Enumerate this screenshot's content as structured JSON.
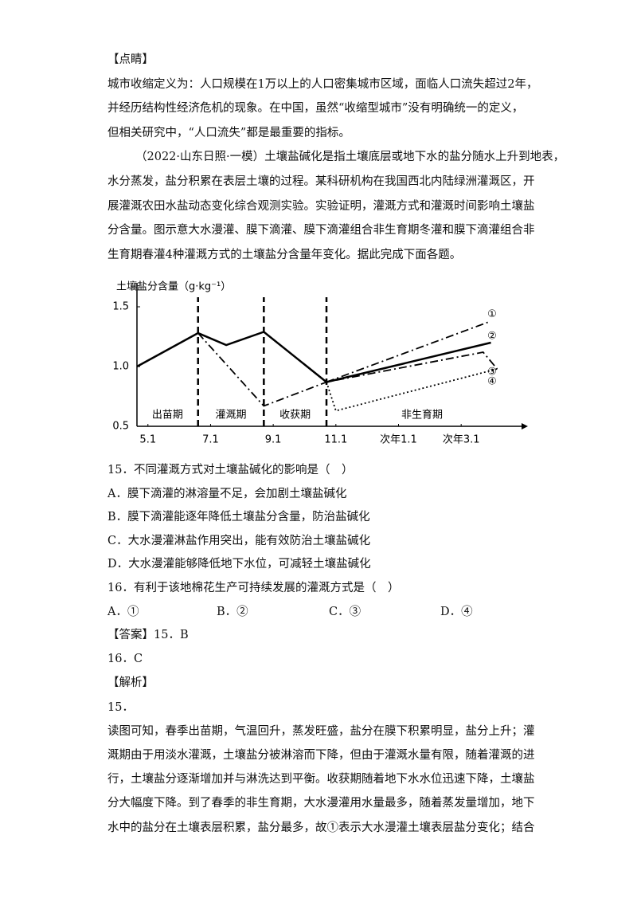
{
  "lines_before": [
    "【点睛】",
    "城市收缩定义为：人口规模在1万以上的人口密集城市区域，面临人口流失超过2年，",
    "并经历结构性经济危机的现象。在中国，虽然“收缩型城市”没有明确统一的定义，",
    "但相关研究中，“人口流失”都是最重要的指标。",
    "（2022·山东日照·一模）土壤盐碱化是指土壤底层或地下水的盐分随水上升到地表，",
    "水分蒸发，盐分积累在表层土壤的过程。某科研机构在我国西北内陆绿洲灌溉区，开",
    "展灌溉农田水盐动态变化综合观测实验。实验证明，灌溉方式和灌溉时间影响土壤盐",
    "分含量。图示意大水漫灌、膜下滴灌、膜下滴灌组合非生育期冬灌和膜下滴灌组合非",
    "生育期春灌4种灌溉方式的土壤盐分含量年变化。据此完成下面各题。"
  ],
  "chart_data": {
    "type": "line",
    "ylabel": "土壤盐分含量（g·kg⁻¹）",
    "xlim": [
      -0.35,
      11.8
    ],
    "ylim": [
      0.5,
      1.7
    ],
    "yticks": [
      {
        "value": 0.5,
        "label": "0.5"
      },
      {
        "value": 1,
        "label": "1.0"
      },
      {
        "value": 1.5,
        "label": "1.5"
      }
    ],
    "xticks": [
      {
        "value": 0,
        "label": "5.1"
      },
      {
        "value": 2,
        "label": "7.1"
      },
      {
        "value": 4,
        "label": "9.1"
      },
      {
        "value": 6,
        "label": "11.1"
      },
      {
        "value": 8,
        "label": "次年1.1"
      },
      {
        "value": 10,
        "label": "次年3.1"
      }
    ],
    "stage_boundaries": [
      1.6,
      3.7,
      5.7
    ],
    "stages": [
      "出苗期",
      "灌溉期",
      "收获期",
      "非生育期"
    ],
    "series": [
      {
        "name": "①",
        "style": "dashdot",
        "color": "#000000",
        "x": [
          5.7,
          10.85
        ],
        "values": [
          0.87,
          1.37
        ]
      },
      {
        "name": "②",
        "style": "solid",
        "color": "#000000",
        "x": [
          -0.35,
          1.6,
          2.5,
          3.7,
          5.7,
          10.95
        ],
        "values": [
          1.0,
          1.28,
          1.18,
          1.29,
          0.87,
          1.2
        ]
      },
      {
        "name": "③",
        "style": "dashdot",
        "color": "#000000",
        "x": [
          1.6,
          3.7,
          5.7,
          10.7,
          11.15
        ],
        "values": [
          1.28,
          0.67,
          0.87,
          1.12,
          0.98
        ]
      },
      {
        "name": "④",
        "style": "dotted",
        "color": "#000000",
        "x": [
          5.7,
          6.0,
          11.15
        ],
        "values": [
          0.87,
          0.63,
          0.98
        ]
      }
    ]
  },
  "lines_after": [
    "15．不同灌溉方式对土壤盐碱化的影响是（　）",
    "A．膜下滴灌的淋溶量不足，会加剧土壤盐碱化",
    "B．膜下滴灌能逐年降低土壤盐分含量，防治盐碱化",
    "C．大水漫灌淋盐作用突出，能有效防治土壤盐碱化",
    "D．大水漫灌能够降低地下水位，可减轻土壤盐碱化",
    "16．有利于该地棉花生产可持续发展的灌溉方式是（　）"
  ],
  "options_16": [
    "A．①",
    "B．②",
    "C．③",
    "D．④"
  ],
  "lines_end": [
    "【答案】15．B",
    "16．C",
    "【解析】",
    "15．",
    "读图可知，春季出苗期，气温回升，蒸发旺盛，盐分在膜下积累明显，盐分上升；灌",
    "溉期由于用淡水灌溉，土壤盐分被淋溶而下降，但由于灌溉水量有限，随着灌溉的进",
    "行，土壤盐分逐渐增加并与淋洗达到平衡。收获期随着地下水水位迅速下降，土壤盐",
    "分大幅度下降。到了春季的非生育期，大水漫灌用水量最多，随着蒸发量增加，地下",
    "水中的盐分在土壤表层积累，盐分最多，故①表示大水漫灌土壤表层盐分变化；结合"
  ]
}
